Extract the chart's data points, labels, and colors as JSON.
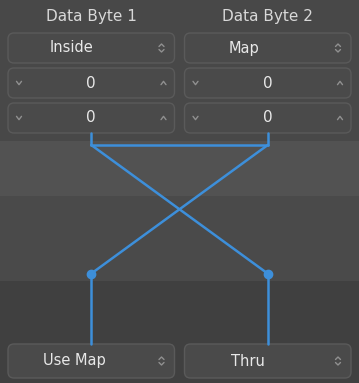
{
  "bg_color": "#3d3d3d",
  "top_panel_color": "#484848",
  "cross_zone_dark": "#404040",
  "cross_zone_mid": "#4a4a4a",
  "cross_zone_light": "#525252",
  "bot_panel_color": "#404040",
  "box_color": "#4a4a4a",
  "box_edge_color": "#5a5a5a",
  "text_color": "#e8e8e8",
  "title_color": "#d8d8d8",
  "blue_line_color": "#3d8fda",
  "blue_dot_color": "#3d8fda",
  "arrow_color": "#909090",
  "title_left": "Data Byte 1",
  "title_right": "Data Byte 2",
  "dropdown1": "Inside",
  "dropdown2": "Map",
  "bottom_left": "Use Map",
  "bottom_right": "Thru",
  "figsize": [
    3.59,
    3.83
  ],
  "dpi": 100
}
